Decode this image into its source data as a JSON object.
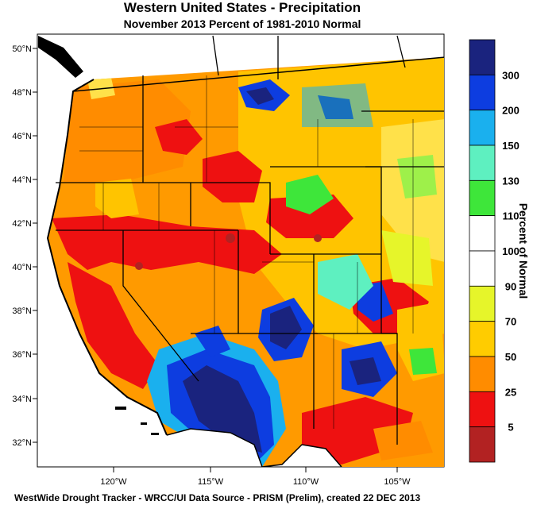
{
  "title": "Western United States - Precipitation",
  "subtitle": "November 2013  Percent of 1981-2010 Normal",
  "footer": "WestWide Drought Tracker - WRCC/UI  Data Source - PRISM (Prelim), created 22 DEC 2013",
  "colorbar": {
    "title": "Percent of Normal",
    "labels": [
      "300",
      "200",
      "150",
      "130",
      "110",
      "100",
      "90",
      "70",
      "50",
      "25",
      "5"
    ],
    "colors": [
      "#1a237e",
      "#0d3de0",
      "#1ab0ee",
      "#5ef0c0",
      "#3ee63a",
      "#ffffff",
      "#ffffff",
      "#e6f52a",
      "#ffcc00",
      "#ff8c00",
      "#ee1111",
      "#b22222"
    ]
  },
  "axes": {
    "lat_ticks": [
      "50°N",
      "48°N",
      "46°N",
      "44°N",
      "42°N",
      "40°N",
      "38°N",
      "36°N",
      "34°N",
      "32°N"
    ],
    "lon_ticks": [
      "120°W",
      "115°W",
      "110°W",
      "105°W"
    ]
  }
}
